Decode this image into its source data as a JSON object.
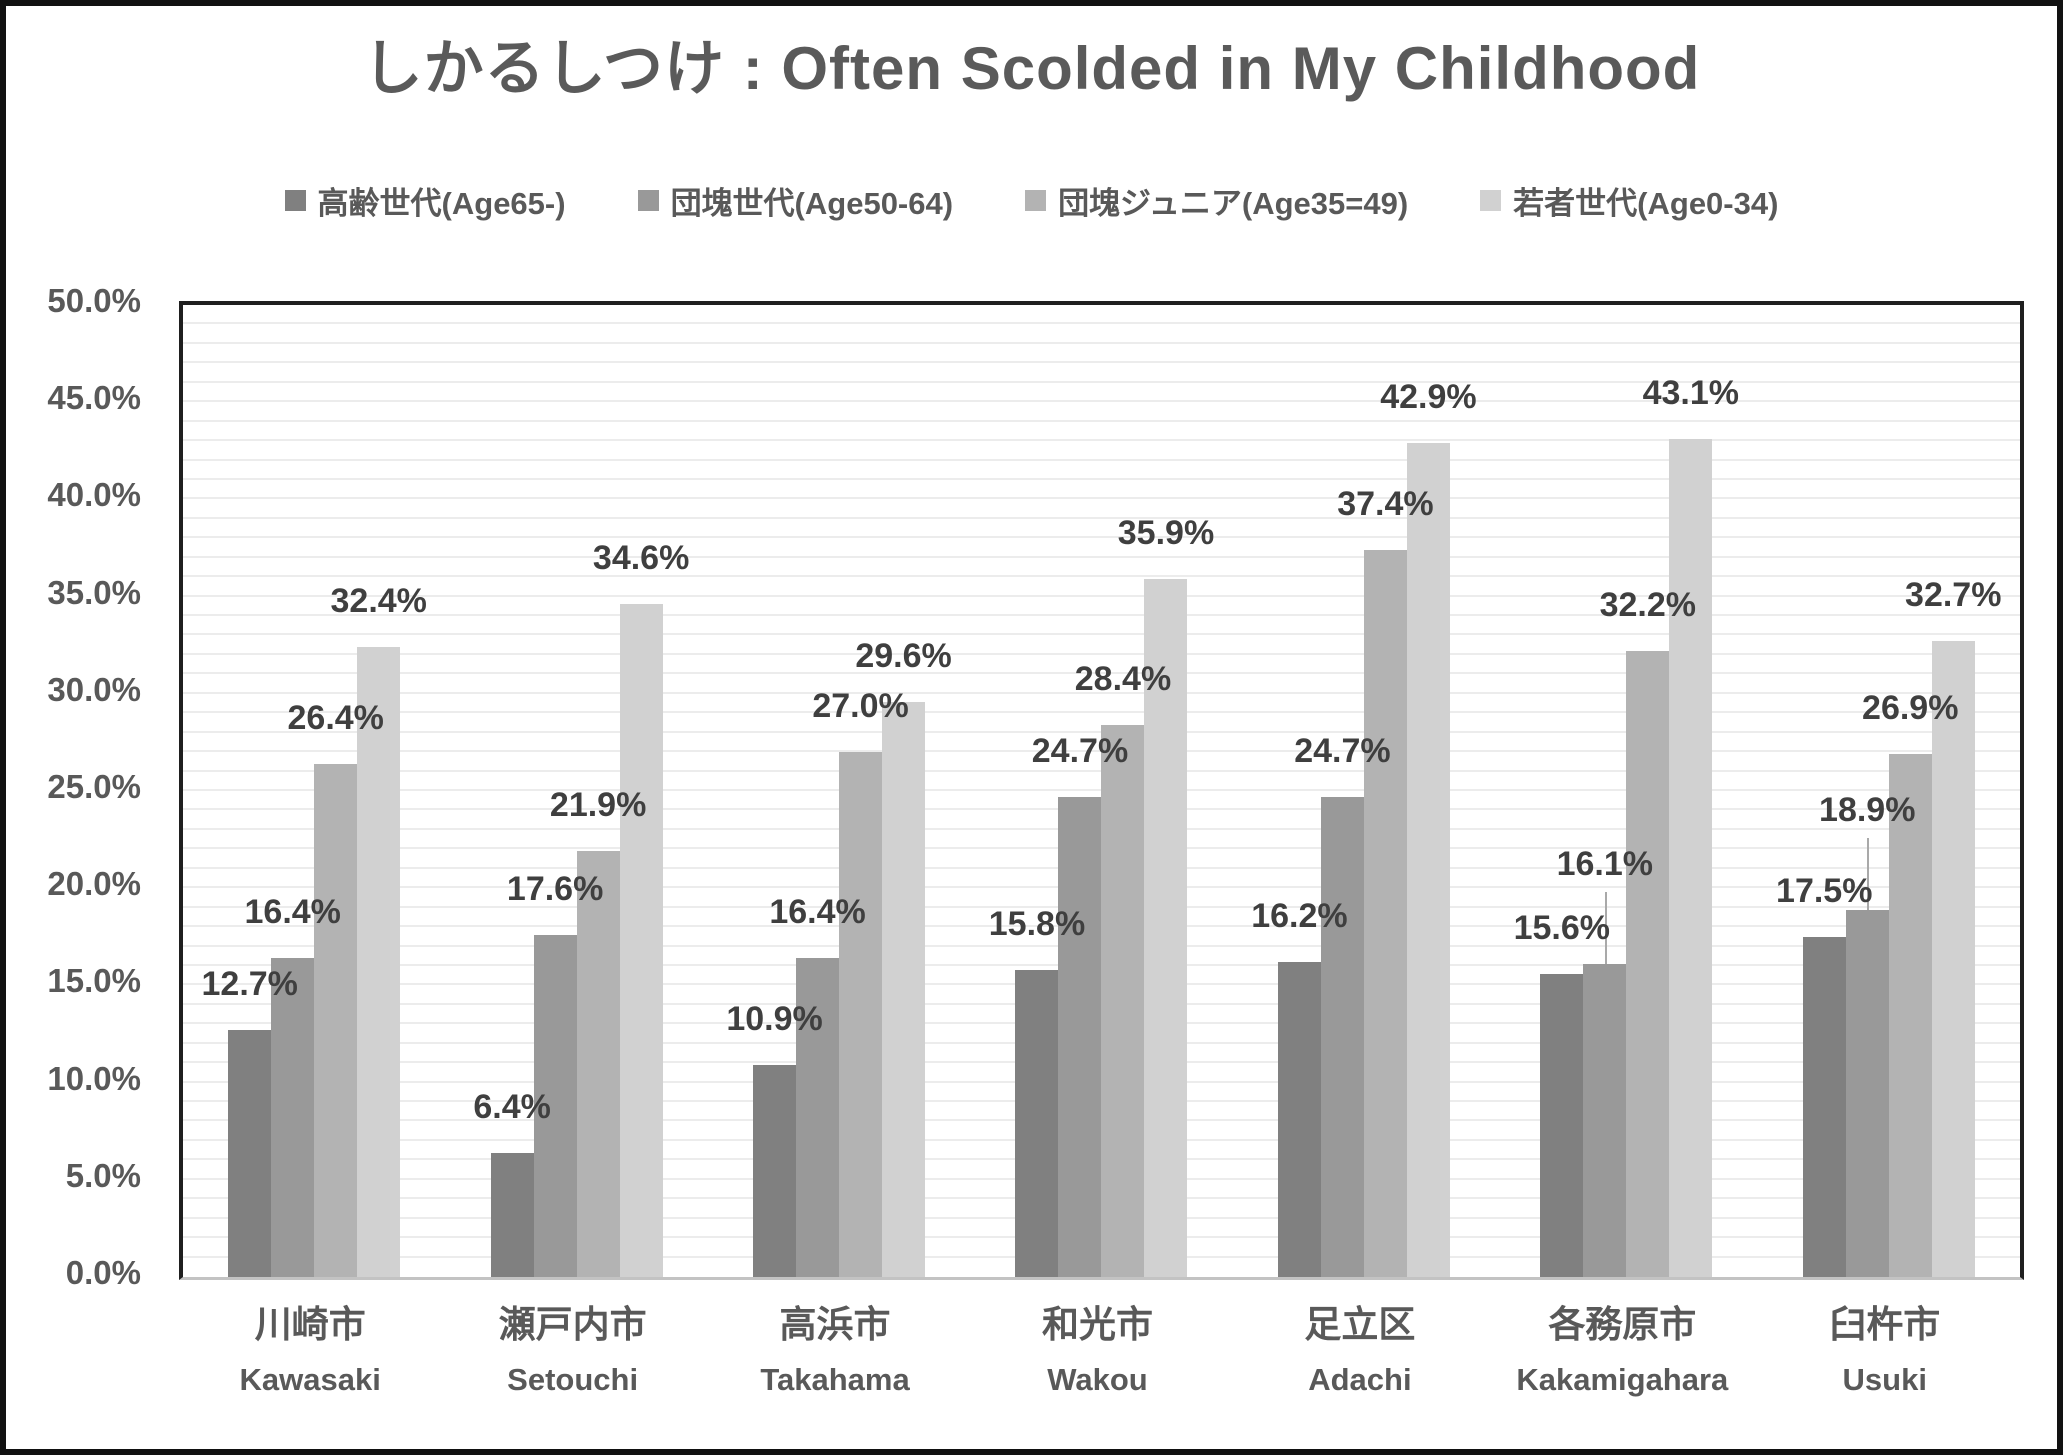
{
  "title": "しかるしつけ : Often Scolded in My Childhood",
  "colors": {
    "title_text": "#5a5a5a",
    "axis_text": "#595959",
    "data_label_text": "#3f3f3f",
    "gridline": "#ececec",
    "plot_border": "#1f1f1f",
    "baseline": "#c3c3c3",
    "leader_line": "#a9a9a9"
  },
  "chart_data": {
    "type": "bar",
    "title": "しかるしつけ : Often Scolded in My Childhood",
    "legend_position": "top",
    "grid": {
      "horizontal": true,
      "interval_pct": 1
    },
    "ylim": [
      0,
      50
    ],
    "y_tick_labels": [
      "0.0%",
      "5.0%",
      "10.0%",
      "15.0%",
      "20.0%",
      "25.0%",
      "30.0%",
      "35.0%",
      "40.0%",
      "45.0%",
      "50.0%"
    ],
    "categories_ja": [
      "川崎市",
      "瀬戸内市",
      "高浜市",
      "和光市",
      "足立区",
      "各務原市",
      "臼杵市"
    ],
    "categories_en": [
      "Kawasaki",
      "Setouchi",
      "Takahama",
      "Wakou",
      "Adachi",
      "Kakamigahara",
      "Usuki"
    ],
    "series": [
      {
        "name": "高齢世代(Age65-)",
        "color": "#808080",
        "values": [
          12.7,
          6.4,
          10.9,
          15.8,
          16.2,
          15.6,
          17.5
        ]
      },
      {
        "name": "団塊世代(Age50-64)",
        "color": "#999999",
        "values": [
          16.4,
          17.6,
          16.4,
          24.7,
          24.7,
          16.1,
          18.9
        ]
      },
      {
        "name": "団塊ジュニア(Age35=49)",
        "color": "#b3b3b3",
        "values": [
          26.4,
          21.9,
          27.0,
          28.4,
          37.4,
          32.2,
          26.9
        ]
      },
      {
        "name": "若者世代(Age0-34)",
        "color": "#d1d1d1",
        "values": [
          32.4,
          34.6,
          29.6,
          35.9,
          42.9,
          43.1,
          32.7
        ]
      }
    ],
    "data_labels": true,
    "label_format": "0.0%",
    "label_leader_lines": [
      {
        "category_index": 5,
        "series_index": 1
      },
      {
        "category_index": 6,
        "series_index": 1
      }
    ]
  }
}
